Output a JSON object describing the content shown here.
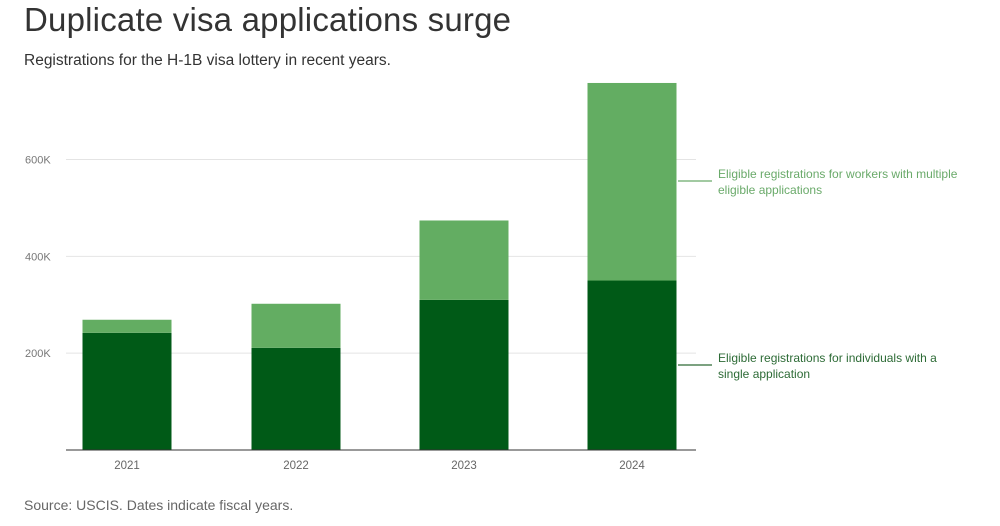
{
  "header": {
    "title": "Duplicate visa applications surge",
    "subtitle": "Registrations for the H-1B visa lottery in recent years."
  },
  "footer": {
    "source": "Source: USCIS. Dates indicate fiscal years."
  },
  "chart_data": {
    "type": "bar",
    "stacked": true,
    "categories": [
      "2021",
      "2022",
      "2023",
      "2024"
    ],
    "series": [
      {
        "name": "Eligible registrations for individuals with a single application",
        "legend_lines": [
          "Eligible registrations for individuals with a",
          "single application"
        ],
        "color": "#005a17",
        "values": [
          242000,
          211000,
          310000,
          350000
        ]
      },
      {
        "name": "Eligible registrations for workers with multiple eligible applications",
        "legend_lines": [
          "Eligible registrations for workers with multiple",
          "eligible applications"
        ],
        "color": "#63ad62",
        "values": [
          27000,
          91000,
          164000,
          408000
        ]
      }
    ],
    "yticks": [
      200000,
      400000,
      600000
    ],
    "ytick_labels": [
      "200K",
      "400K",
      "600K"
    ],
    "ylim": [
      0,
      760000
    ],
    "grid": true,
    "legend": "right, direct labels"
  }
}
